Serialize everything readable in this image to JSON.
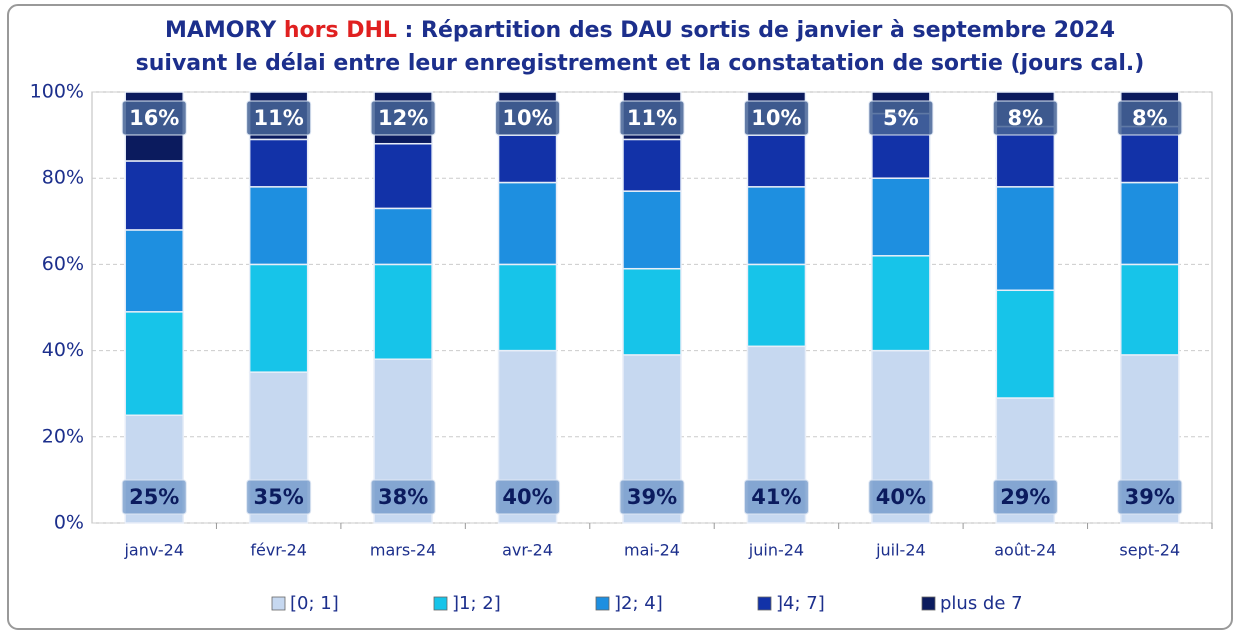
{
  "chart_data": {
    "type": "stacked_bar",
    "title": {
      "line1": [
        "MAMORY",
        "hors DHL",
        " : Répartition des DAU sortis de janvier à septembre 2024"
      ],
      "line2": "suivant le délai entre leur enregistrement et la constatation de sortie (jours cal.)"
    },
    "categories": [
      "janv-24",
      "févr-24",
      "mars-24",
      "avr-24",
      "mai-24",
      "juin-24",
      "juil-24",
      "août-24",
      "sept-24"
    ],
    "series": [
      {
        "name": "[0; 1]",
        "color": "#c6d8f0",
        "values": [
          25,
          35,
          38,
          40,
          39,
          41,
          40,
          29,
          39
        ],
        "value_labels": [
          "25%",
          "35%",
          "38%",
          "40%",
          "39%",
          "41%",
          "40%",
          "29%",
          "39%"
        ]
      },
      {
        "name": "]1; 2]",
        "color": "#17c4e9",
        "values": [
          24,
          25,
          22,
          20,
          20,
          19,
          22,
          25,
          21
        ]
      },
      {
        "name": "]2; 4]",
        "color": "#1e8fe0",
        "values": [
          19,
          18,
          13,
          19,
          18,
          18,
          18,
          24,
          19
        ]
      },
      {
        "name": "]4; 7]",
        "color": "#1232a8",
        "values": [
          16,
          11,
          15,
          11,
          12,
          12,
          15,
          14,
          13
        ]
      },
      {
        "name": "plus de 7",
        "color": "#0b1b5e",
        "values": [
          16,
          11,
          12,
          10,
          11,
          10,
          5,
          8,
          8
        ],
        "value_labels": [
          "16%",
          "11%",
          "12%",
          "10%",
          "11%",
          "10%",
          "5%",
          "8%",
          "8%"
        ]
      }
    ],
    "ylim": [
      0,
      100
    ],
    "yticks": [
      {
        "value": 0,
        "label": "0%"
      },
      {
        "value": 20,
        "label": "20%"
      },
      {
        "value": 40,
        "label": "40%"
      },
      {
        "value": 60,
        "label": "60%"
      },
      {
        "value": 80,
        "label": "80%"
      },
      {
        "value": 100,
        "label": "100%"
      }
    ],
    "grid": true
  }
}
